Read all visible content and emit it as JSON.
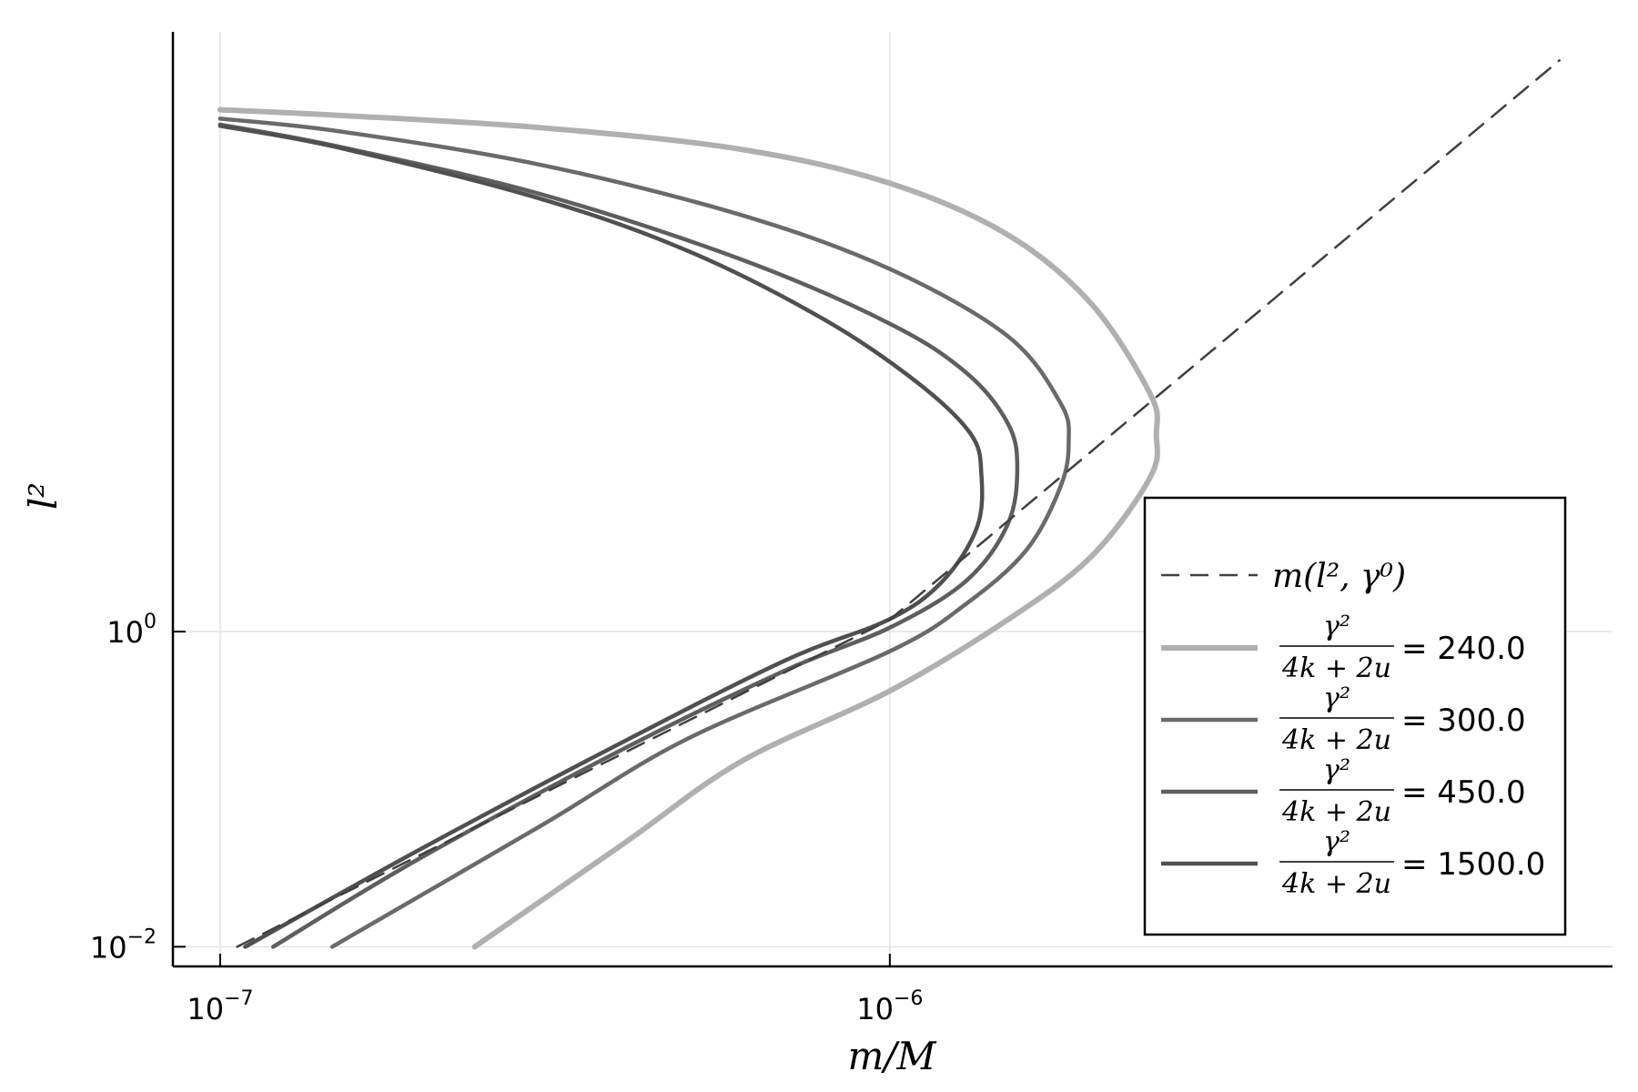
{
  "chart_data": {
    "type": "line",
    "xlabel": "m/M",
    "ylabel": "l²",
    "xscale": "log",
    "yscale": "log",
    "xlim": [
      8.5e-08,
      1.2e-05
    ],
    "ylim": [
      0.0075,
      6400
    ],
    "grid": true,
    "legend_position": "bottom-right",
    "x_ticks": [
      {
        "value": 1e-07,
        "base": "10",
        "exp": "−7"
      },
      {
        "value": 1e-06,
        "base": "10",
        "exp": "−6"
      }
    ],
    "y_ticks": [
      {
        "value": 1,
        "base": "10",
        "exp": "0"
      },
      {
        "value": 0.01,
        "base": "10",
        "exp": "−2"
      }
    ],
    "legend_fraction": {
      "num": "γ²",
      "den": "4k + 2u"
    },
    "series": [
      {
        "name": "m(l², γ⁰)",
        "style": "dashed",
        "color": "#404040",
        "width": 2.5,
        "points": [
          [
            1.06e-07,
            0.01
          ],
          [
            1e-06,
            1.19
          ],
          [
            1e-05,
            4220
          ]
        ]
      },
      {
        "name": "240.0",
        "legend_value": "240.0",
        "style": "solid",
        "color": "#b0b0b0",
        "width": 6,
        "points": [
          [
            2.4e-07,
            0.01
          ],
          [
            4e-07,
            0.045
          ],
          [
            6e-07,
            0.15
          ],
          [
            1e-06,
            0.42
          ],
          [
            1.5e-06,
            1.19
          ],
          [
            2e-06,
            3.0
          ],
          [
            2.45e-06,
            9.6
          ],
          [
            2.5e-06,
            18
          ],
          [
            2.45e-06,
            32
          ],
          [
            2e-06,
            120
          ],
          [
            1.5e-06,
            330
          ],
          [
            1e-06,
            700
          ],
          [
            6e-07,
            1150
          ],
          [
            3e-07,
            1580
          ],
          [
            1.5e-07,
            1890
          ],
          [
            1e-07,
            2050
          ]
        ]
      },
      {
        "name": "300.0",
        "legend_value": "300.0",
        "style": "solid",
        "color": "#6a6a6a",
        "width": 4.5,
        "points": [
          [
            1.47e-07,
            0.01
          ],
          [
            3e-07,
            0.058
          ],
          [
            5e-07,
            0.21
          ],
          [
            1e-06,
            0.75
          ],
          [
            1.3e-06,
            1.5
          ],
          [
            1.6e-06,
            3.3
          ],
          [
            1.8e-06,
            8.4
          ],
          [
            1.85e-06,
            16
          ],
          [
            1.8e-06,
            28
          ],
          [
            1.5e-06,
            75
          ],
          [
            1e-06,
            200
          ],
          [
            6e-07,
            440
          ],
          [
            3e-07,
            920
          ],
          [
            1.5e-07,
            1500
          ],
          [
            1e-07,
            1800
          ]
        ]
      },
      {
        "name": "450.0",
        "legend_value": "450.0",
        "style": "solid",
        "color": "#5e5e5e",
        "width": 4.5,
        "points": [
          [
            1.2e-07,
            0.01
          ],
          [
            2e-07,
            0.037
          ],
          [
            4e-07,
            0.18
          ],
          [
            7e-07,
            0.57
          ],
          [
            1e-06,
            1.06
          ],
          [
            1.3e-06,
            2.1
          ],
          [
            1.5e-06,
            4.8
          ],
          [
            1.55e-06,
            11
          ],
          [
            1.5e-06,
            21
          ],
          [
            1.3e-06,
            44
          ],
          [
            1e-06,
            90
          ],
          [
            6e-07,
            230
          ],
          [
            3e-07,
            600
          ],
          [
            1.5e-07,
            1200
          ],
          [
            1e-07,
            1650
          ]
        ]
      },
      {
        "name": "1500.0",
        "legend_value": "1500.0",
        "style": "solid",
        "color": "#505050",
        "width": 4.5,
        "points": [
          [
            1.09e-07,
            0.01
          ],
          [
            2e-07,
            0.042
          ],
          [
            4e-07,
            0.2
          ],
          [
            7e-07,
            0.66
          ],
          [
            1e-06,
            1.2
          ],
          [
            1.2e-06,
            2.1
          ],
          [
            1.35e-06,
            4.6
          ],
          [
            1.37e-06,
            10
          ],
          [
            1.32e-06,
            18
          ],
          [
            1.1e-06,
            38
          ],
          [
            8e-07,
            95
          ],
          [
            5e-07,
            260
          ],
          [
            3e-07,
            560
          ],
          [
            1.5e-07,
            1180
          ],
          [
            1e-07,
            1620
          ]
        ]
      }
    ]
  }
}
